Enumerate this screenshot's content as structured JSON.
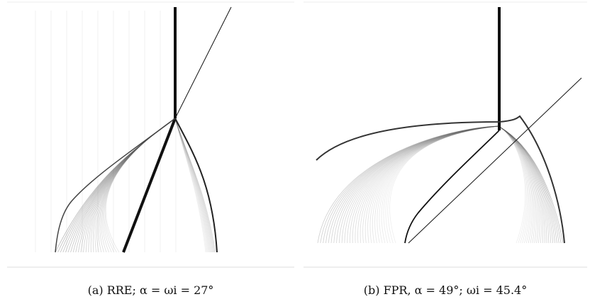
{
  "figure": {
    "panels": [
      {
        "id": "a",
        "caption": "(a) RRE; α = ωi = 27°"
      },
      {
        "id": "b",
        "caption": "(b) FPR, α = 49°; ωi = 45.4°"
      }
    ]
  },
  "colors": {
    "background": "#ffffff",
    "ink": "#111111",
    "fringe": "#9a9a9a",
    "frame_line": "#dddddd"
  }
}
